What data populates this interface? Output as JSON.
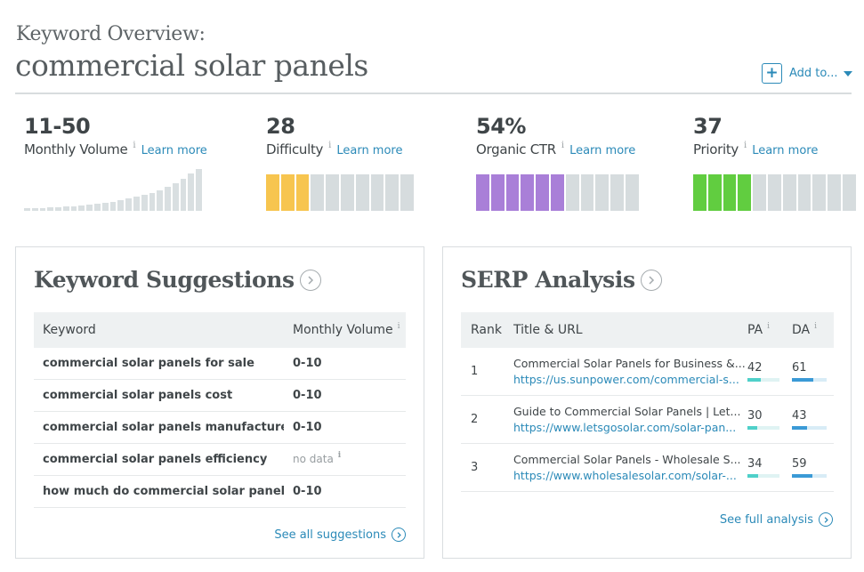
{
  "header": {
    "label": "Keyword Overview:",
    "keyword": "commercial solar panels",
    "add_to_label": "Add to..."
  },
  "metrics": [
    {
      "value": "11-50",
      "name": "Monthly Volume",
      "info": "i",
      "learn_more": "Learn more"
    },
    {
      "value": "28",
      "name": "Difficulty",
      "info": "i",
      "learn_more": "Learn more",
      "filled_segments": 3,
      "total_segments": 10,
      "color": "#f7c54f"
    },
    {
      "value": "54%",
      "name": "Organic CTR",
      "info": "i",
      "learn_more": "Learn more",
      "filled_segments": 6,
      "total_segments": 11,
      "color": "#a97fd8"
    },
    {
      "value": "37",
      "name": "Priority",
      "info": "i",
      "learn_more": "Learn more",
      "filled_segments": 4,
      "total_segments": 11,
      "color": "#61cd40"
    }
  ],
  "volume_trend": [
    0.05,
    0.05,
    0.06,
    0.07,
    0.08,
    0.09,
    0.1,
    0.12,
    0.14,
    0.16,
    0.18,
    0.2,
    0.23,
    0.26,
    0.3,
    0.34,
    0.39,
    0.45,
    0.52,
    0.6,
    0.7,
    0.8,
    0.9
  ],
  "keyword_suggestions": {
    "title": "Keyword Suggestions",
    "col_keyword": "Keyword",
    "col_volume": "Monthly Volume",
    "col_info": "i",
    "rows": [
      {
        "keyword": "commercial solar panels for sale",
        "volume": "0-10"
      },
      {
        "keyword": "commercial solar panels cost",
        "volume": "0-10"
      },
      {
        "keyword": "commercial solar panels manufacturers",
        "volume": "0-10"
      },
      {
        "keyword": "commercial solar panels efficiency",
        "volume": "no data",
        "info": "i"
      },
      {
        "keyword": "how much do commercial solar panels cost",
        "volume": "0-10"
      }
    ],
    "see_all": "See all suggestions"
  },
  "serp_analysis": {
    "title": "SERP Analysis",
    "col_rank": "Rank",
    "col_title": "Title & URL",
    "col_pa": "PA",
    "col_da": "DA",
    "col_info": "i",
    "pa_color": "#4fd0c9",
    "da_color": "#3a9ad6",
    "rows": [
      {
        "rank": "1",
        "title": "Commercial Solar Panels for Business &...",
        "url": "https://us.sunpower.com/commercial-s...",
        "pa": "42",
        "da": "61",
        "pa_value": 42,
        "da_value": 61
      },
      {
        "rank": "2",
        "title": "Guide to Commercial Solar Panels | Let...",
        "url": "https://www.letsgosolar.com/solar-pan...",
        "pa": "30",
        "da": "43",
        "pa_value": 30,
        "da_value": 43
      },
      {
        "rank": "3",
        "title": "Commercial Solar Panels - Wholesale S...",
        "url": "https://www.wholesalesolar.com/solar-...",
        "pa": "34",
        "da": "59",
        "pa_value": 34,
        "da_value": 59
      }
    ],
    "see_full": "See full analysis"
  }
}
